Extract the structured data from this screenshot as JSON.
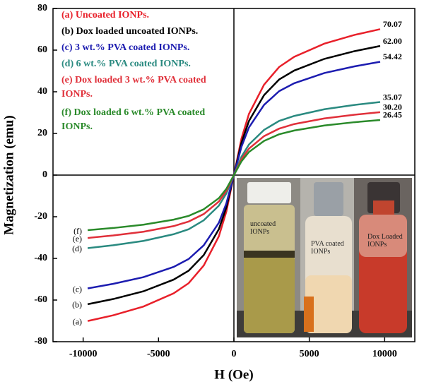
{
  "chart_data": {
    "type": "line",
    "xlabel": "H (Oe)",
    "ylabel": "Magnetization (emu)",
    "xlim": [
      -12000,
      12000
    ],
    "ylim": [
      -80,
      80
    ],
    "xticks": [
      -10000,
      -5000,
      0,
      5000,
      10000
    ],
    "yticks": [
      -80,
      -60,
      -40,
      -20,
      0,
      20,
      40,
      60,
      80
    ],
    "x": [
      -9700,
      -8000,
      -6000,
      -4000,
      -3000,
      -2000,
      -1000,
      -500,
      0,
      500,
      1000,
      2000,
      3000,
      4000,
      6000,
      8000,
      9700
    ],
    "series": [
      {
        "name": "(a) Uncoated IONPs.",
        "tag": "(a)",
        "end_label": "70.07",
        "color": "#e8202a",
        "values": [
          -70.07,
          -67.3,
          -63.1,
          -56.8,
          -51.9,
          -43.4,
          -29.4,
          -17.5,
          0,
          17.5,
          29.4,
          43.4,
          51.9,
          56.8,
          63.1,
          67.3,
          70.07
        ]
      },
      {
        "name": "(b) Dox loaded uncoated IONPs.",
        "tag": "(b)",
        "end_label": "62.00",
        "color": "#000000",
        "values": [
          -62.0,
          -59.5,
          -55.8,
          -50.2,
          -45.9,
          -38.4,
          -26.0,
          -15.5,
          0,
          15.5,
          26.0,
          38.4,
          45.9,
          50.2,
          55.8,
          59.5,
          62.0
        ]
      },
      {
        "name": "(c) 3 wt.% PVA coated IONPs.",
        "tag": "(c)",
        "end_label": "54.42",
        "color": "#1c1cb0",
        "values": [
          -54.42,
          -52.2,
          -49.0,
          -44.1,
          -40.3,
          -33.7,
          -22.9,
          -13.6,
          0,
          13.6,
          22.9,
          33.7,
          40.3,
          44.1,
          49.0,
          52.2,
          54.42
        ]
      },
      {
        "name": "(d) 6 wt.% PVA coated IONPs.",
        "tag": "(d)",
        "end_label": "35.07",
        "color": "#2a8a80",
        "values": [
          -35.07,
          -33.7,
          -31.6,
          -28.4,
          -26.0,
          -21.7,
          -14.7,
          -8.8,
          0,
          8.8,
          14.7,
          21.7,
          26.0,
          28.4,
          31.6,
          33.7,
          35.07
        ]
      },
      {
        "name": "(e) Dox loaded 3 wt.% PVA coated IONPs.",
        "tag": "(e)",
        "end_label": "30.20",
        "color": "#e0303a",
        "values": [
          -30.2,
          -29.0,
          -27.2,
          -24.5,
          -22.3,
          -18.7,
          -12.7,
          -7.6,
          0,
          7.6,
          12.7,
          18.7,
          22.3,
          24.5,
          27.2,
          29.0,
          30.2
        ]
      },
      {
        "name": "(f) Dox loaded 6 wt.% PVA coated IONPs.",
        "tag": "(f)",
        "end_label": "26.45",
        "color": "#2a8a2a",
        "values": [
          -26.45,
          -25.4,
          -23.8,
          -21.4,
          -19.6,
          -16.4,
          -11.1,
          -6.6,
          0,
          6.6,
          11.1,
          16.4,
          19.6,
          21.4,
          23.8,
          25.4,
          26.45
        ]
      }
    ],
    "inset_labels": [
      "uncoated IONPs",
      "PVA coated IONPs",
      "Dox Loaded IONPs"
    ]
  }
}
